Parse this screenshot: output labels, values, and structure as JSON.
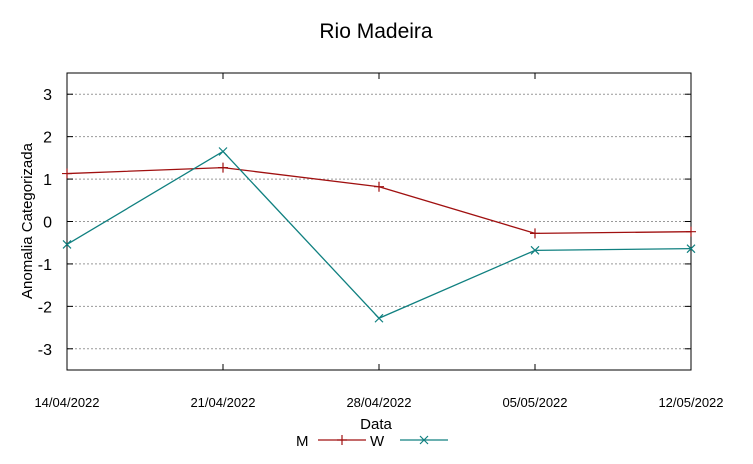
{
  "chart_data": {
    "type": "line",
    "title": "Rio Madeira",
    "xlabel": "Data",
    "ylabel": "Anomalia Categorizada",
    "categories": [
      "14/04/2022",
      "21/04/2022",
      "28/04/2022",
      "05/05/2022",
      "12/05/2022"
    ],
    "yticks": [
      "3",
      "2",
      "1",
      "0",
      "-1",
      "-2",
      "-3"
    ],
    "ylim": [
      -3.5,
      3.5
    ],
    "grid": true,
    "legend_position": "bottom",
    "series": [
      {
        "name": "M",
        "color": "#a01010",
        "marker": "plus",
        "values": [
          1.13,
          1.27,
          0.82,
          -0.28,
          -0.24
        ]
      },
      {
        "name": "W",
        "color": "#108080",
        "marker": "cross",
        "values": [
          -0.54,
          1.65,
          -2.28,
          -0.68,
          -0.64
        ]
      }
    ]
  }
}
